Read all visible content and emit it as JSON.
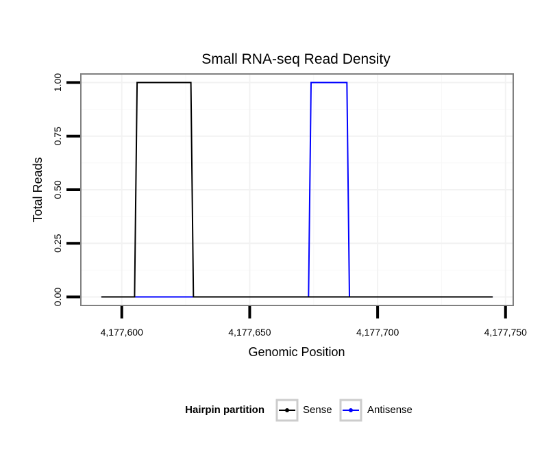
{
  "chart_data": {
    "type": "line",
    "title": "Small RNA-seq Read Density",
    "xlabel": "Genomic Position",
    "ylabel": "Total Reads",
    "xlim": [
      4177584,
      4177753
    ],
    "ylim": [
      -0.04,
      1.04
    ],
    "x_ticks": [
      4177600,
      4177650,
      4177700,
      4177750
    ],
    "x_tick_labels": [
      "4,177,600",
      "4,177,650",
      "4,177,700",
      "4,177,750"
    ],
    "y_ticks": [
      0,
      0.25,
      0.5,
      0.75,
      1
    ],
    "y_tick_labels": [
      "0.00",
      "0.25",
      "0.50",
      "0.75",
      "1.00"
    ],
    "grid": true,
    "legend": {
      "title": "Hairpin partition",
      "position": "bottom"
    },
    "series": [
      {
        "name": "Sense",
        "color": "#000000",
        "x": [
          4177592,
          4177605,
          4177606,
          4177627,
          4177628,
          4177745
        ],
        "y": [
          0,
          0,
          1,
          1,
          0,
          0
        ]
      },
      {
        "name": "Antisense",
        "color": "#0000ff",
        "x": [
          4177592,
          4177673,
          4177674,
          4177688,
          4177689,
          4177745
        ],
        "y": [
          0,
          0,
          1,
          1,
          0,
          0
        ]
      }
    ]
  }
}
